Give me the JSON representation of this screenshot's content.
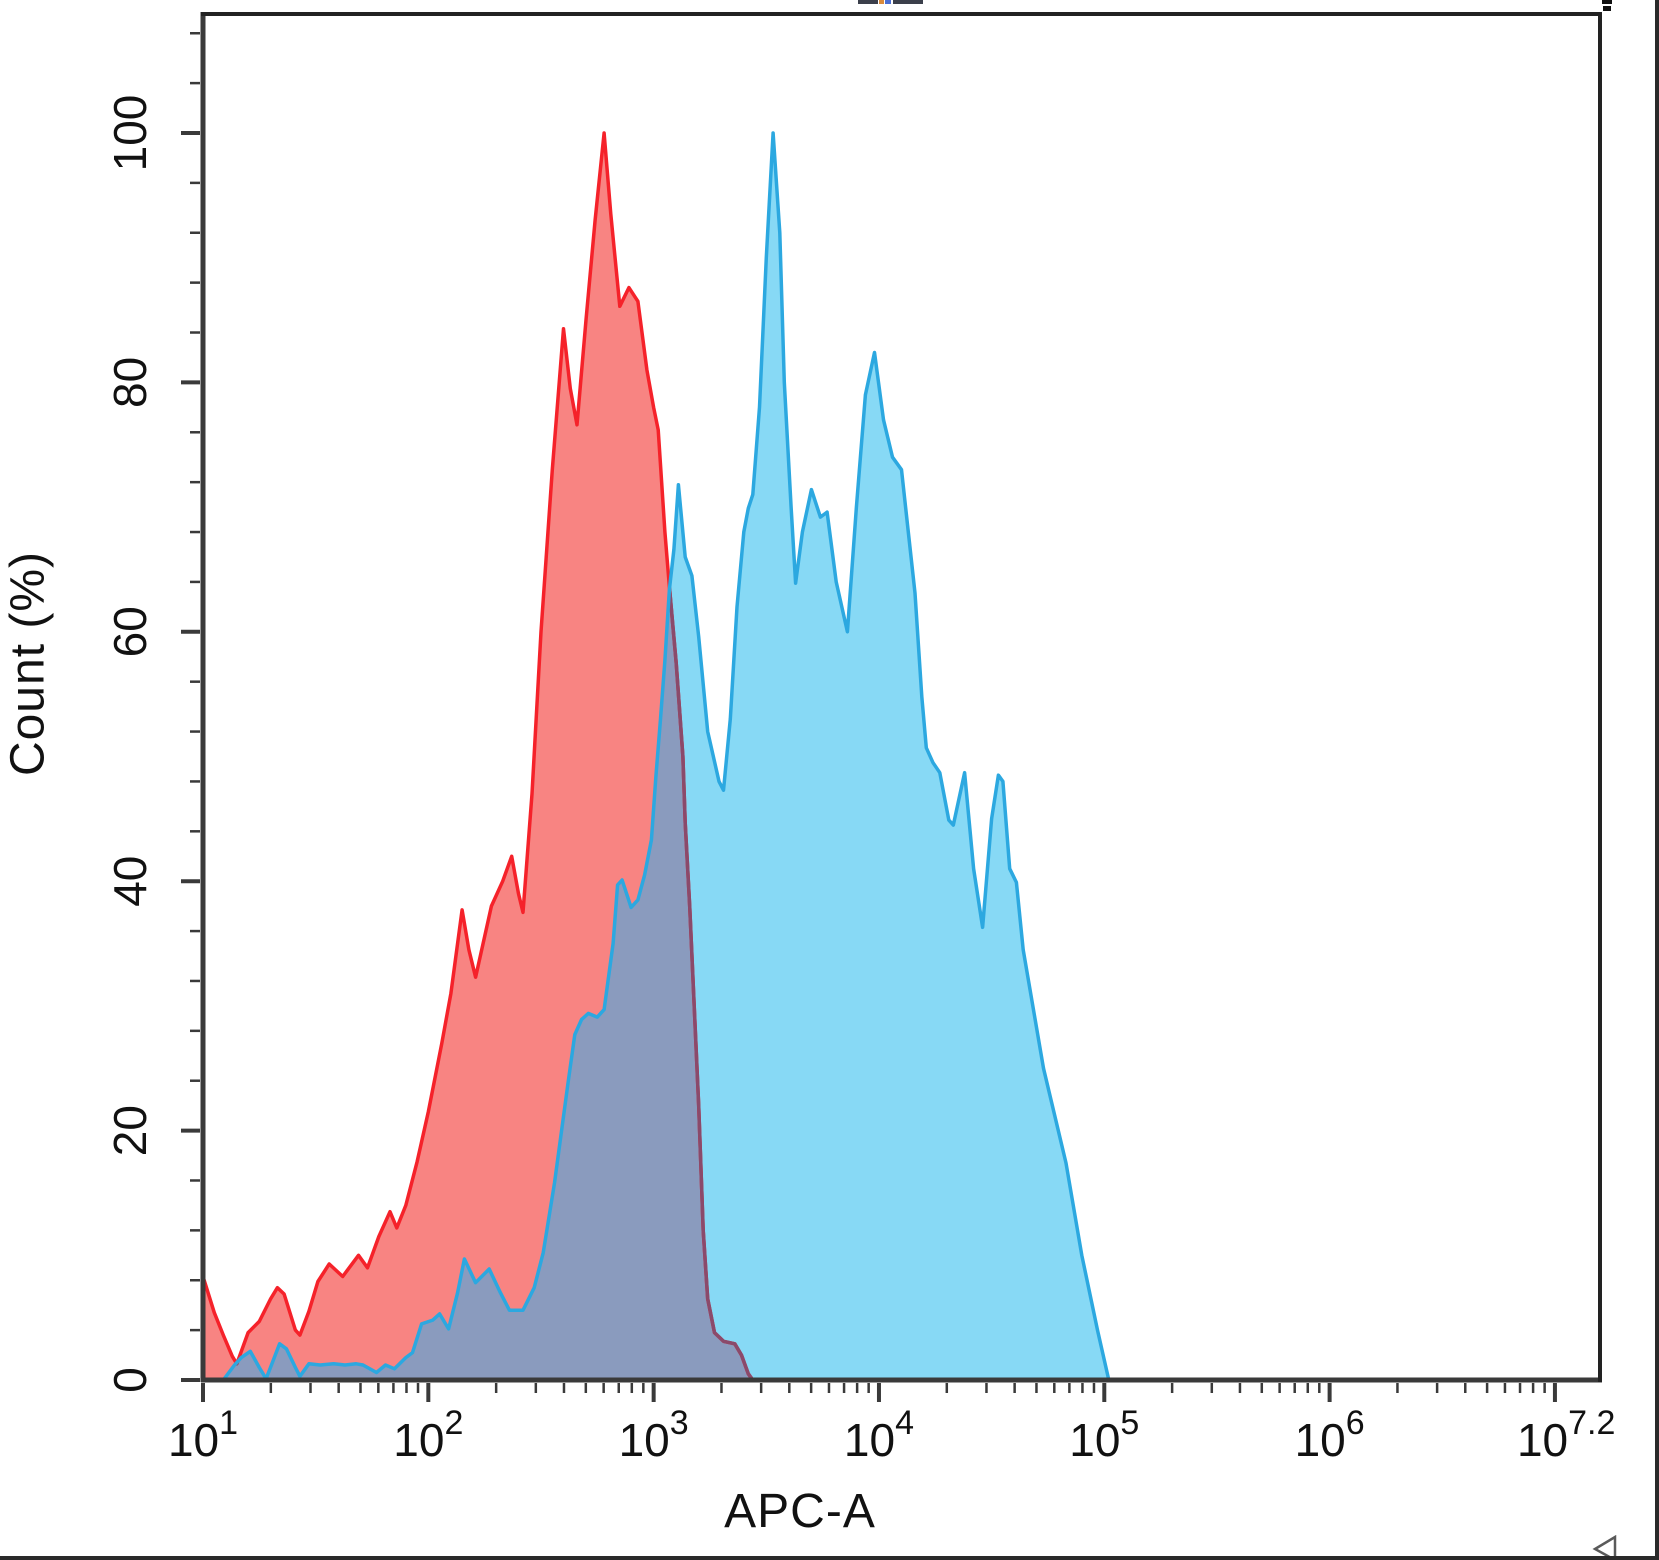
{
  "chart_data": {
    "type": "area",
    "title": "",
    "xlabel": "APC-A",
    "ylabel": "Count (%)",
    "x_scale": "log10",
    "x_log_range": [
      1.0,
      7.2
    ],
    "ylim": [
      0,
      109.5
    ],
    "grid": false,
    "legend": "none",
    "axis_color": "#3a3a3a",
    "tick_text_color": "#111111",
    "x_tick_labels": [
      {
        "base": "10",
        "exp": "1",
        "log": 1.0
      },
      {
        "base": "10",
        "exp": "2",
        "log": 2.0
      },
      {
        "base": "10",
        "exp": "3",
        "log": 3.0
      },
      {
        "base": "10",
        "exp": "4",
        "log": 4.0
      },
      {
        "base": "10",
        "exp": "5",
        "log": 5.0
      },
      {
        "base": "10",
        "exp": "6",
        "log": 6.0
      },
      {
        "base": "10",
        "exp": "7.2",
        "log": 7.05
      }
    ],
    "x_major_tick_logs": [
      1,
      2,
      3,
      4,
      5,
      6,
      7
    ],
    "y_major_ticks": [
      0,
      20,
      40,
      60,
      80,
      100
    ],
    "y_minor_tick_step": 4,
    "y_minor_tick_max": 108,
    "overlap_fill": "#8A9BBE",
    "overlap_line": "#8A4A6B",
    "series": [
      {
        "name": "red-histogram",
        "line_color": "#F5222A",
        "fill_color": "#F88482",
        "points": [
          [
            1.0,
            8.3
          ],
          [
            1.05,
            5.4
          ],
          [
            1.09,
            3.6
          ],
          [
            1.13,
            1.9
          ],
          [
            1.15,
            1.3
          ],
          [
            1.2,
            3.8
          ],
          [
            1.25,
            4.7
          ],
          [
            1.3,
            6.5
          ],
          [
            1.33,
            7.4
          ],
          [
            1.36,
            6.9
          ],
          [
            1.41,
            4.0
          ],
          [
            1.43,
            3.6
          ],
          [
            1.47,
            5.5
          ],
          [
            1.51,
            7.9
          ],
          [
            1.56,
            9.3
          ],
          [
            1.62,
            8.3
          ],
          [
            1.69,
            10.0
          ],
          [
            1.73,
            9.0
          ],
          [
            1.78,
            11.5
          ],
          [
            1.83,
            13.5
          ],
          [
            1.86,
            12.2
          ],
          [
            1.9,
            14.0
          ],
          [
            1.95,
            17.5
          ],
          [
            2.0,
            21.5
          ],
          [
            2.06,
            27.0
          ],
          [
            2.1,
            31.0
          ],
          [
            2.15,
            37.7
          ],
          [
            2.18,
            34.5
          ],
          [
            2.21,
            32.3
          ],
          [
            2.28,
            38.0
          ],
          [
            2.33,
            40.0
          ],
          [
            2.37,
            42.0
          ],
          [
            2.4,
            39.0
          ],
          [
            2.42,
            37.5
          ],
          [
            2.46,
            47.0
          ],
          [
            2.5,
            60.0
          ],
          [
            2.55,
            73.0
          ],
          [
            2.6,
            84.3
          ],
          [
            2.63,
            79.5
          ],
          [
            2.66,
            76.6
          ],
          [
            2.7,
            85.0
          ],
          [
            2.74,
            93.0
          ],
          [
            2.78,
            100.0
          ],
          [
            2.81,
            93.5
          ],
          [
            2.85,
            86.1
          ],
          [
            2.89,
            87.6
          ],
          [
            2.93,
            86.5
          ],
          [
            2.97,
            81.0
          ],
          [
            3.0,
            78.0
          ],
          [
            3.02,
            76.2
          ],
          [
            3.05,
            68.0
          ],
          [
            3.07,
            63.6
          ],
          [
            3.1,
            57.5
          ],
          [
            3.13,
            50.0
          ],
          [
            3.14,
            44.7
          ],
          [
            3.16,
            38.0
          ],
          [
            3.18,
            30.0
          ],
          [
            3.2,
            22.0
          ],
          [
            3.22,
            12.0
          ],
          [
            3.24,
            6.5
          ],
          [
            3.27,
            3.8
          ],
          [
            3.31,
            3.1
          ],
          [
            3.36,
            2.9
          ],
          [
            3.39,
            2.0
          ],
          [
            3.42,
            0.5
          ],
          [
            3.44,
            0.0
          ]
        ]
      },
      {
        "name": "blue-histogram",
        "line_color": "#2CA8E0",
        "fill_color": "#87D9F5",
        "points": [
          [
            1.09,
            0.0
          ],
          [
            1.14,
            1.2
          ],
          [
            1.17,
            1.8
          ],
          [
            1.21,
            2.3
          ],
          [
            1.25,
            1.0
          ],
          [
            1.28,
            0.1
          ],
          [
            1.31,
            1.5
          ],
          [
            1.34,
            2.9
          ],
          [
            1.37,
            2.5
          ],
          [
            1.41,
            1.0
          ],
          [
            1.43,
            0.3
          ],
          [
            1.47,
            1.3
          ],
          [
            1.52,
            1.2
          ],
          [
            1.58,
            1.3
          ],
          [
            1.63,
            1.2
          ],
          [
            1.68,
            1.3
          ],
          [
            1.71,
            1.2
          ],
          [
            1.77,
            0.6
          ],
          [
            1.81,
            1.2
          ],
          [
            1.85,
            0.9
          ],
          [
            1.9,
            1.8
          ],
          [
            1.93,
            2.2
          ],
          [
            1.97,
            4.5
          ],
          [
            2.02,
            4.8
          ],
          [
            2.05,
            5.3
          ],
          [
            2.09,
            4.1
          ],
          [
            2.13,
            7.0
          ],
          [
            2.16,
            9.7
          ],
          [
            2.21,
            7.8
          ],
          [
            2.27,
            8.9
          ],
          [
            2.32,
            7.0
          ],
          [
            2.36,
            5.6
          ],
          [
            2.42,
            5.6
          ],
          [
            2.47,
            7.4
          ],
          [
            2.51,
            10.2
          ],
          [
            2.56,
            15.8
          ],
          [
            2.62,
            23.8
          ],
          [
            2.65,
            27.7
          ],
          [
            2.68,
            28.9
          ],
          [
            2.71,
            29.4
          ],
          [
            2.75,
            29.1
          ],
          [
            2.78,
            29.7
          ],
          [
            2.82,
            35.0
          ],
          [
            2.84,
            39.7
          ],
          [
            2.86,
            40.1
          ],
          [
            2.9,
            37.9
          ],
          [
            2.93,
            38.5
          ],
          [
            2.96,
            40.5
          ],
          [
            2.99,
            43.3
          ],
          [
            3.01,
            48.4
          ],
          [
            3.03,
            52.9
          ],
          [
            3.05,
            57.7
          ],
          [
            3.07,
            63.4
          ],
          [
            3.09,
            66.6
          ],
          [
            3.11,
            71.8
          ],
          [
            3.14,
            66.0
          ],
          [
            3.17,
            64.5
          ],
          [
            3.2,
            59.6
          ],
          [
            3.24,
            52.0
          ],
          [
            3.29,
            48.0
          ],
          [
            3.31,
            47.3
          ],
          [
            3.34,
            53.0
          ],
          [
            3.37,
            62.0
          ],
          [
            3.4,
            68.0
          ],
          [
            3.42,
            69.9
          ],
          [
            3.44,
            71.0
          ],
          [
            3.47,
            78.0
          ],
          [
            3.5,
            90.0
          ],
          [
            3.53,
            100.0
          ],
          [
            3.56,
            92.0
          ],
          [
            3.58,
            80.0
          ],
          [
            3.61,
            70.0
          ],
          [
            3.63,
            63.9
          ],
          [
            3.66,
            68.0
          ],
          [
            3.7,
            71.4
          ],
          [
            3.74,
            69.2
          ],
          [
            3.77,
            69.6
          ],
          [
            3.81,
            64.0
          ],
          [
            3.86,
            60.0
          ],
          [
            3.9,
            70.0
          ],
          [
            3.94,
            79.0
          ],
          [
            3.98,
            82.4
          ],
          [
            4.02,
            77.0
          ],
          [
            4.06,
            74.0
          ],
          [
            4.1,
            73.0
          ],
          [
            4.13,
            68.0
          ],
          [
            4.16,
            63.1
          ],
          [
            4.19,
            54.8
          ],
          [
            4.21,
            50.7
          ],
          [
            4.24,
            49.5
          ],
          [
            4.27,
            48.7
          ],
          [
            4.31,
            44.9
          ],
          [
            4.33,
            44.5
          ],
          [
            4.38,
            48.7
          ],
          [
            4.42,
            41.0
          ],
          [
            4.46,
            36.3
          ],
          [
            4.5,
            45.0
          ],
          [
            4.53,
            48.5
          ],
          [
            4.55,
            48.0
          ],
          [
            4.58,
            41.0
          ],
          [
            4.61,
            39.9
          ],
          [
            4.64,
            34.5
          ],
          [
            4.73,
            25.0
          ],
          [
            4.83,
            17.4
          ],
          [
            4.9,
            10.0
          ],
          [
            4.97,
            4.0
          ],
          [
            5.02,
            0.0
          ]
        ]
      }
    ]
  }
}
